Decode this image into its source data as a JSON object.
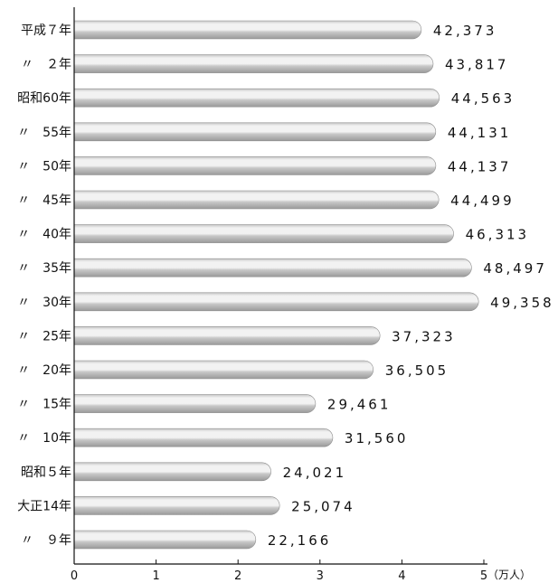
{
  "chart_data": {
    "type": "bar",
    "orientation": "horizontal",
    "categories": [
      "平成７年",
      "〃　２年",
      "昭和60年",
      "〃　55年",
      "〃　50年",
      "〃　45年",
      "〃　40年",
      "〃　35年",
      "〃　30年",
      "〃　25年",
      "〃　20年",
      "〃　15年",
      "〃　10年",
      "昭和５年",
      "大正14年",
      "〃　９年"
    ],
    "values": [
      4.2373,
      4.3817,
      4.4563,
      4.4131,
      4.4137,
      4.4499,
      4.6313,
      4.8497,
      4.9358,
      3.7323,
      3.6505,
      2.9461,
      3.156,
      2.4021,
      2.5074,
      2.2166
    ],
    "value_labels": [
      "42,373",
      "43,817",
      "44,563",
      "44,131",
      "44,137",
      "44,499",
      "46,313",
      "48,497",
      "49,358",
      "37,323",
      "36,505",
      "29,461",
      "31,560",
      "24,021",
      "25,074",
      "22,166"
    ],
    "x_ticks": [
      "0",
      "1",
      "2",
      "3",
      "4",
      "5"
    ],
    "xlim": [
      0,
      5
    ],
    "x_unit": "（万人）",
    "xlabel": "",
    "ylabel": "",
    "title": "",
    "grid": false,
    "legend": "none",
    "colors": {
      "bar_light": "#f2f2f2",
      "bar_mid": "#c8c8c8",
      "bar_dark": "#9a9a9a",
      "axis": "#111111"
    }
  }
}
